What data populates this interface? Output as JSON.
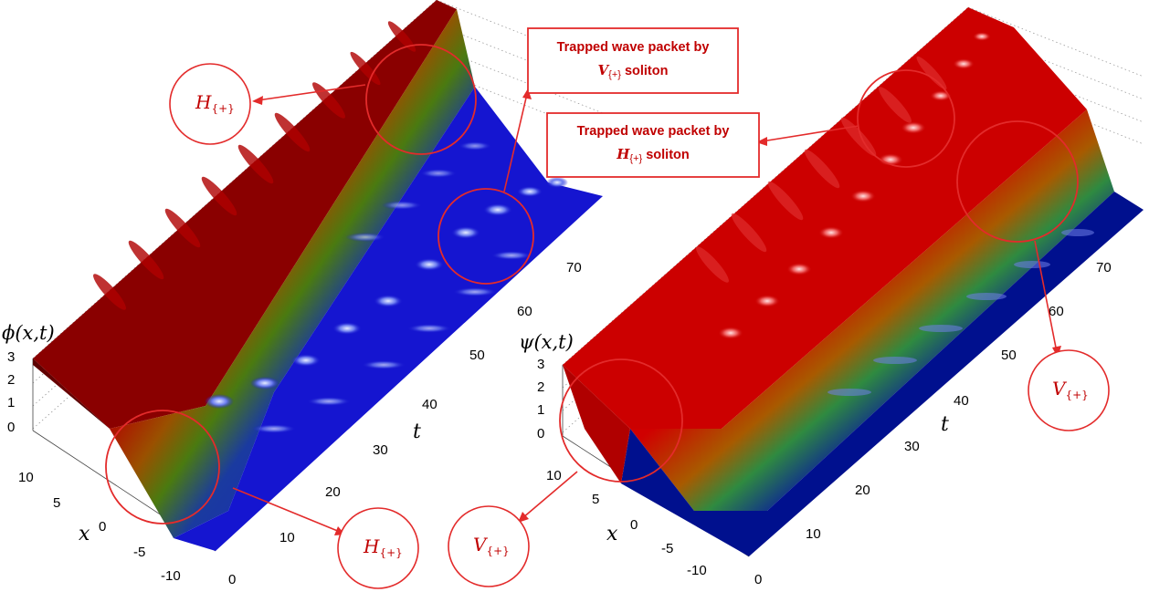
{
  "panels": {
    "left": {
      "z_label": "ϕ(x,t)",
      "z_ticks": [
        "3",
        "2",
        "1",
        "0"
      ],
      "x_label": "x",
      "x_ticks": [
        "10",
        "5",
        "0",
        "-5",
        "-10"
      ],
      "t_label": "t",
      "t_ticks": [
        "0",
        "10",
        "20",
        "30",
        "40",
        "50",
        "60",
        "70"
      ]
    },
    "right": {
      "z_label": "ψ(x,t)",
      "z_ticks": [
        "3",
        "2",
        "1",
        "0"
      ],
      "x_label": "x",
      "x_ticks": [
        "10",
        "5",
        "0",
        "-5",
        "-10"
      ],
      "t_label": "t",
      "t_ticks": [
        "0",
        "10",
        "20",
        "30",
        "40",
        "50",
        "60",
        "70"
      ]
    }
  },
  "callouts": {
    "box_v": {
      "line1": "Trapped wave packet by",
      "sym": "V",
      "sub": "{+}",
      "suffix": " soliton"
    },
    "box_h": {
      "line1": "Trapped wave packet by",
      "sym": "H",
      "sub": "{+}",
      "suffix": " soliton"
    }
  },
  "circle_labels": {
    "left_top": {
      "sym": "H",
      "sub": "{+}"
    },
    "left_bottom": {
      "sym": "H",
      "sub": "{+}"
    },
    "right_bottom": {
      "sym": "V",
      "sub": "{+}"
    },
    "right_side": {
      "sym": "V",
      "sub": "{+}"
    }
  },
  "colors": {
    "kink_red": "#c40000",
    "dark_red": "#7a0000",
    "blue": "#1010c8",
    "deep_blue": "#00007a",
    "annotation_red": "#e32b2b"
  }
}
